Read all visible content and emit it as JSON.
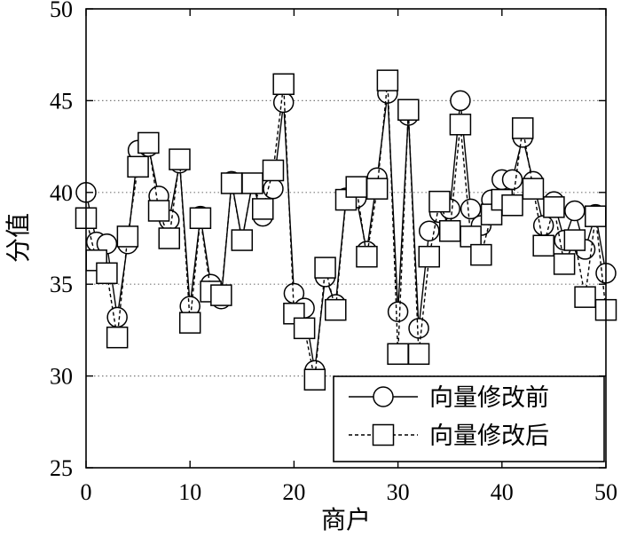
{
  "chart_data": {
    "type": "line",
    "xlabel": "商户",
    "ylabel": "分值",
    "xlim": [
      0,
      50
    ],
    "ylim": [
      25,
      50
    ],
    "xticks": [
      0,
      10,
      20,
      30,
      40,
      50
    ],
    "yticks": [
      25,
      30,
      35,
      40,
      45,
      50
    ],
    "grid": true,
    "legend_position": "lower-right",
    "x": [
      0,
      1,
      2,
      3,
      4,
      5,
      6,
      7,
      8,
      9,
      10,
      11,
      12,
      13,
      14,
      15,
      16,
      17,
      18,
      19,
      20,
      21,
      22,
      23,
      24,
      25,
      26,
      27,
      28,
      29,
      30,
      31,
      32,
      33,
      34,
      35,
      36,
      37,
      38,
      39,
      40,
      41,
      42,
      43,
      44,
      45,
      46,
      47,
      48,
      49,
      50
    ],
    "series": [
      {
        "name": "向量修改前",
        "marker": "circle",
        "line": "solid",
        "color": "#000000",
        "values": [
          40.0,
          37.3,
          37.2,
          33.2,
          37.2,
          42.3,
          42.5,
          39.8,
          38.5,
          41.6,
          33.8,
          38.7,
          35.0,
          34.2,
          40.6,
          37.4,
          40.5,
          38.7,
          40.2,
          44.9,
          34.5,
          33.7,
          30.3,
          35.4,
          33.9,
          39.7,
          39.7,
          36.8,
          40.8,
          45.4,
          33.5,
          44.2,
          32.6,
          37.9,
          38.9,
          39.1,
          45.0,
          39.1,
          38.2,
          39.6,
          40.7,
          40.7,
          43.0,
          40.6,
          38.2,
          39.5,
          37.4,
          39.0,
          36.9,
          38.8,
          35.6
        ]
      },
      {
        "name": "向量修改后",
        "marker": "square",
        "line": "dashed",
        "color": "#000000",
        "values": [
          38.6,
          36.3,
          35.6,
          32.1,
          37.6,
          41.4,
          42.7,
          39.0,
          37.5,
          41.8,
          32.9,
          38.6,
          34.6,
          34.4,
          40.5,
          37.4,
          40.5,
          39.1,
          41.2,
          45.9,
          33.4,
          32.6,
          29.8,
          35.9,
          33.6,
          39.6,
          40.3,
          36.5,
          40.2,
          46.1,
          31.2,
          44.5,
          31.2,
          36.5,
          39.5,
          37.9,
          43.7,
          37.6,
          36.6,
          38.8,
          39.6,
          39.3,
          43.5,
          40.2,
          37.1,
          39.2,
          36.1,
          37.4,
          34.3,
          38.7,
          33.6
        ]
      }
    ]
  }
}
